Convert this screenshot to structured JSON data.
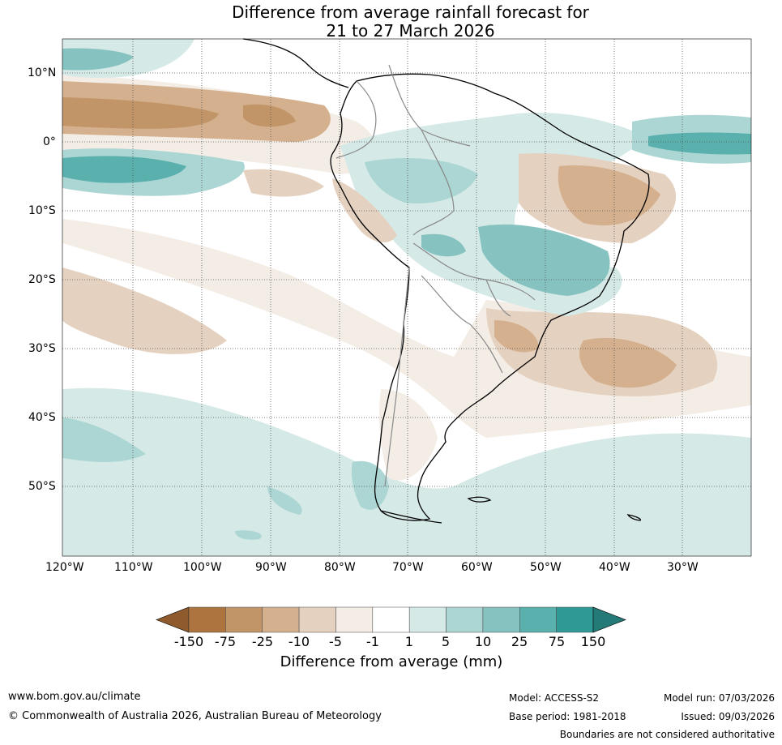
{
  "title_line1": "Difference from average rainfall forecast for",
  "title_line2": "21 to 27 March 2026",
  "lat_labels": [
    "10°N",
    "0°",
    "10°S",
    "20°S",
    "30°S",
    "40°S",
    "50°S"
  ],
  "lon_labels": [
    "120°W",
    "110°W",
    "100°W",
    "90°W",
    "80°W",
    "70°W",
    "60°W",
    "50°W",
    "40°W",
    "30°W"
  ],
  "colorbar": {
    "label": "Difference from average (mm)",
    "ticks": [
      "-150",
      "-75",
      "-25",
      "-10",
      "-5",
      "-1",
      "1",
      "5",
      "10",
      "25",
      "75",
      "150"
    ],
    "colors": [
      "#8f5a2c",
      "#ad7440",
      "#c29568",
      "#d4b08e",
      "#e5d1bf",
      "#f3ede6",
      "#ffffff",
      "#d5e9e7",
      "#acd6d3",
      "#86c3c0",
      "#5ab0ad",
      "#2e9995",
      "#237a76"
    ]
  },
  "footer": {
    "url": "www.bom.gov.au/climate",
    "copyright": "© Commonwealth of Australia 2026, Australian Bureau of Meteorology",
    "model": "Model: ACCESS-S2",
    "base_period": "Base period: 1981-2018",
    "model_run": "Model run: 07/03/2026",
    "issued": "Issued: 09/03/2026",
    "disclaimer": "Boundaries are not considered authoritative"
  }
}
